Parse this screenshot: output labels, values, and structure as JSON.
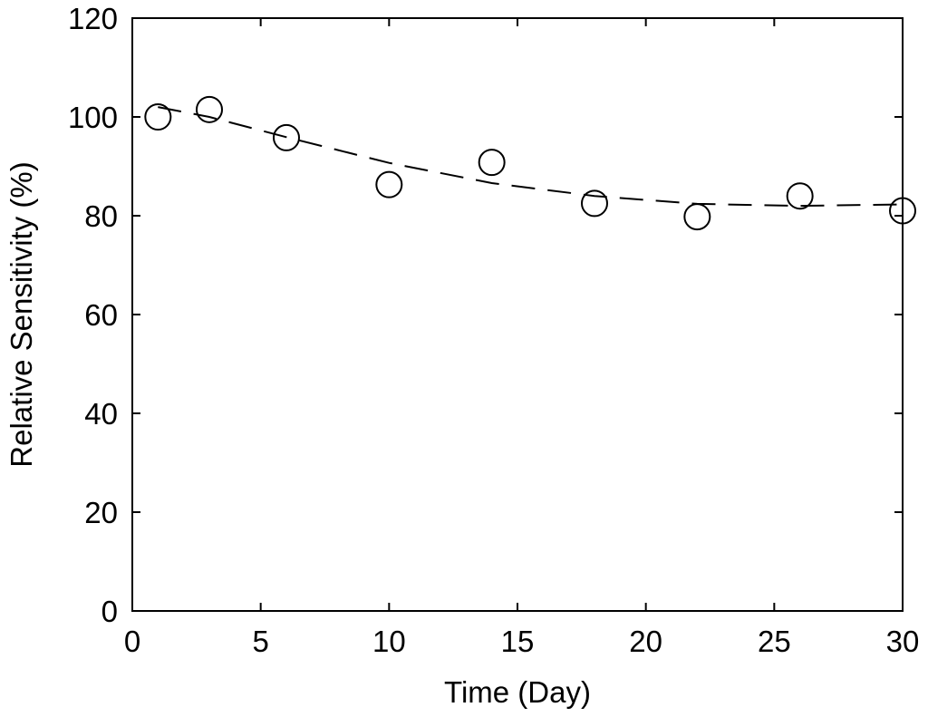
{
  "chart_data": {
    "type": "scatter",
    "title": "",
    "xlabel": "Time (Day)",
    "ylabel": "Relative Sensitivity (%)",
    "xlim": [
      0,
      30
    ],
    "ylim": [
      0,
      120
    ],
    "x_ticks": [
      0,
      5,
      10,
      15,
      20,
      25,
      30
    ],
    "y_ticks": [
      0,
      20,
      40,
      60,
      80,
      100,
      120
    ],
    "grid": false,
    "marker": "open-circle",
    "series": [
      {
        "kind": "points",
        "x": [
          1,
          3,
          6,
          10,
          14,
          18,
          22,
          26,
          30
        ],
        "y": [
          100,
          101.5,
          95.8,
          86.3,
          90.8,
          82.5,
          79.8,
          84,
          81
        ]
      },
      {
        "kind": "fit-line",
        "style": "dashed",
        "x": [
          1,
          3,
          6,
          10,
          14,
          18,
          22,
          26,
          30
        ],
        "y": [
          102,
          100,
          95.9,
          90.7,
          86.6,
          84,
          82.4,
          82,
          82.3
        ]
      }
    ]
  }
}
